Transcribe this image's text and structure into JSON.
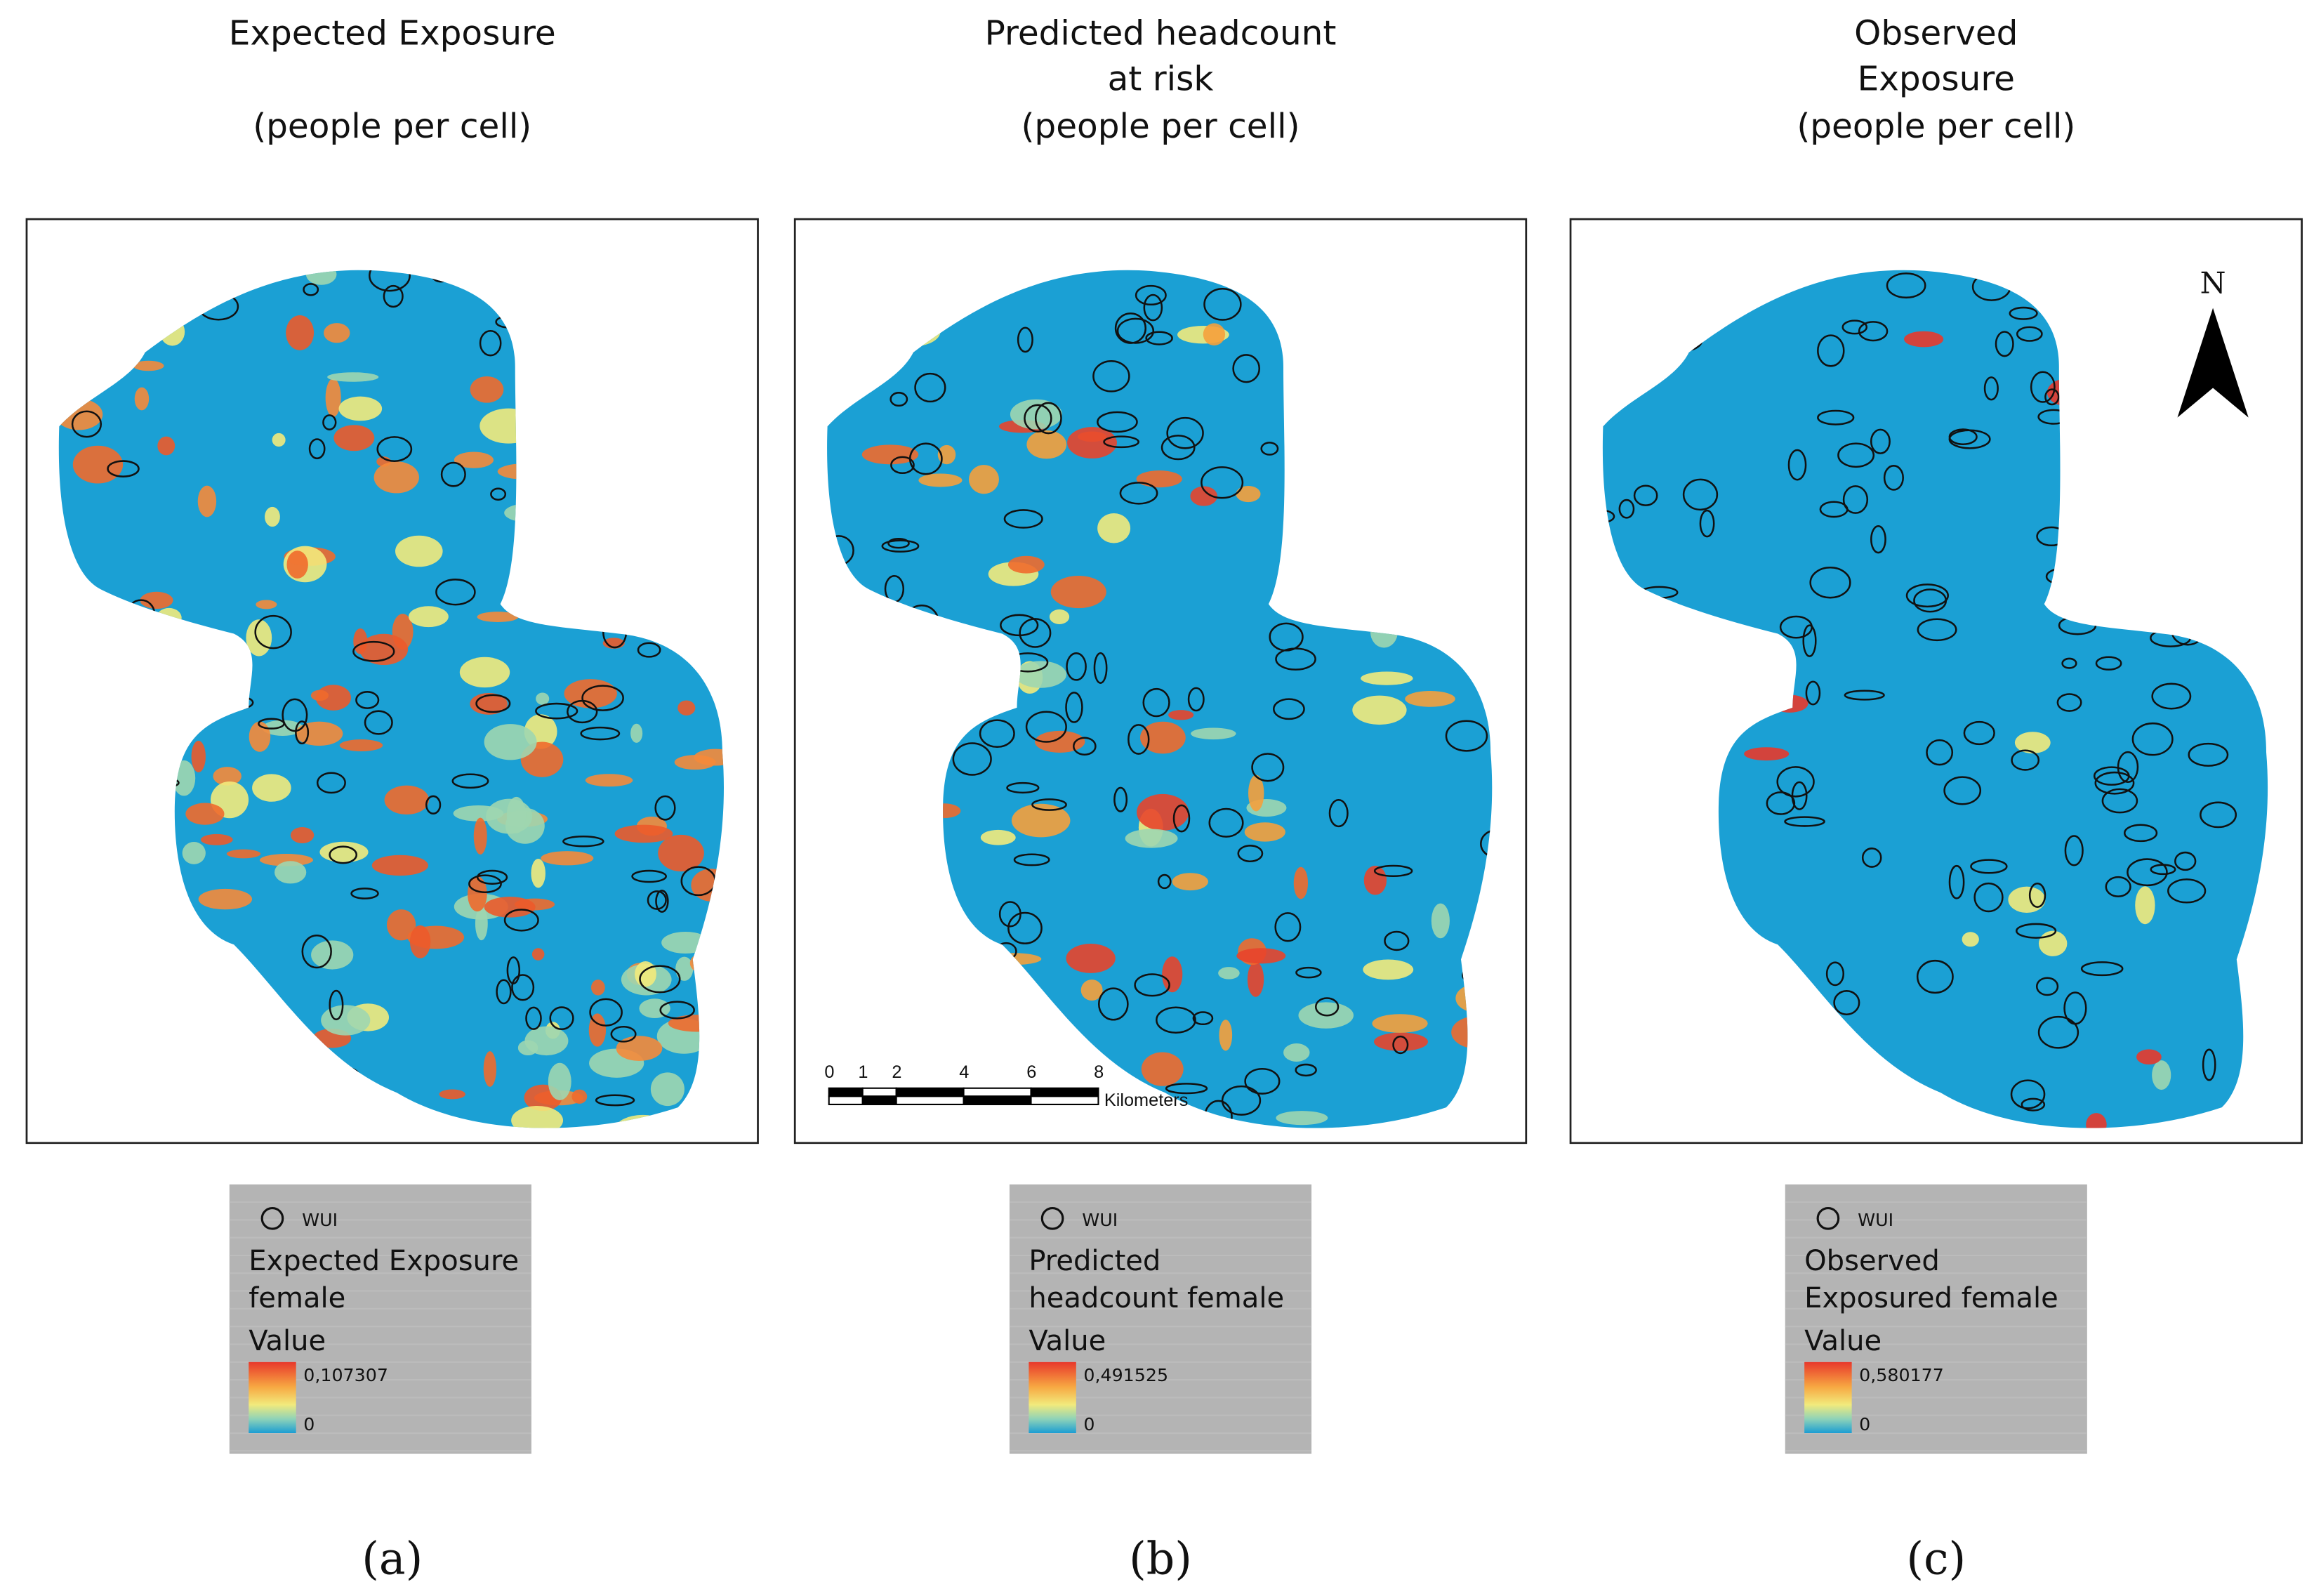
{
  "panels": [
    {
      "title": [
        "Expected Exposure",
        "(people per cell)"
      ],
      "legend": {
        "symbol": "WUI",
        "title": [
          "Expected Exposure",
          "female"
        ],
        "value_label": "Value",
        "max": "0,107307",
        "min": "0"
      },
      "caption": "(a)"
    },
    {
      "title": [
        "Predicted headcount",
        "at risk",
        "(people per cell)"
      ],
      "legend": {
        "symbol": "WUI",
        "title": [
          "Predicted",
          "headcount female"
        ],
        "value_label": "Value",
        "max": "0,491525",
        "min": "0"
      },
      "caption": "(b)"
    },
    {
      "title": [
        "Observed",
        "Exposure",
        "(people per cell)"
      ],
      "legend": {
        "symbol": "WUI",
        "title": [
          "Observed",
          "Exposured female"
        ],
        "value_label": "Value",
        "max": "0,580177",
        "min": "0"
      },
      "caption": "(c)"
    }
  ],
  "scale_bar": {
    "ticks": [
      0,
      1,
      2,
      4,
      6,
      8
    ],
    "unit": "Kilometers"
  },
  "north": "N"
}
